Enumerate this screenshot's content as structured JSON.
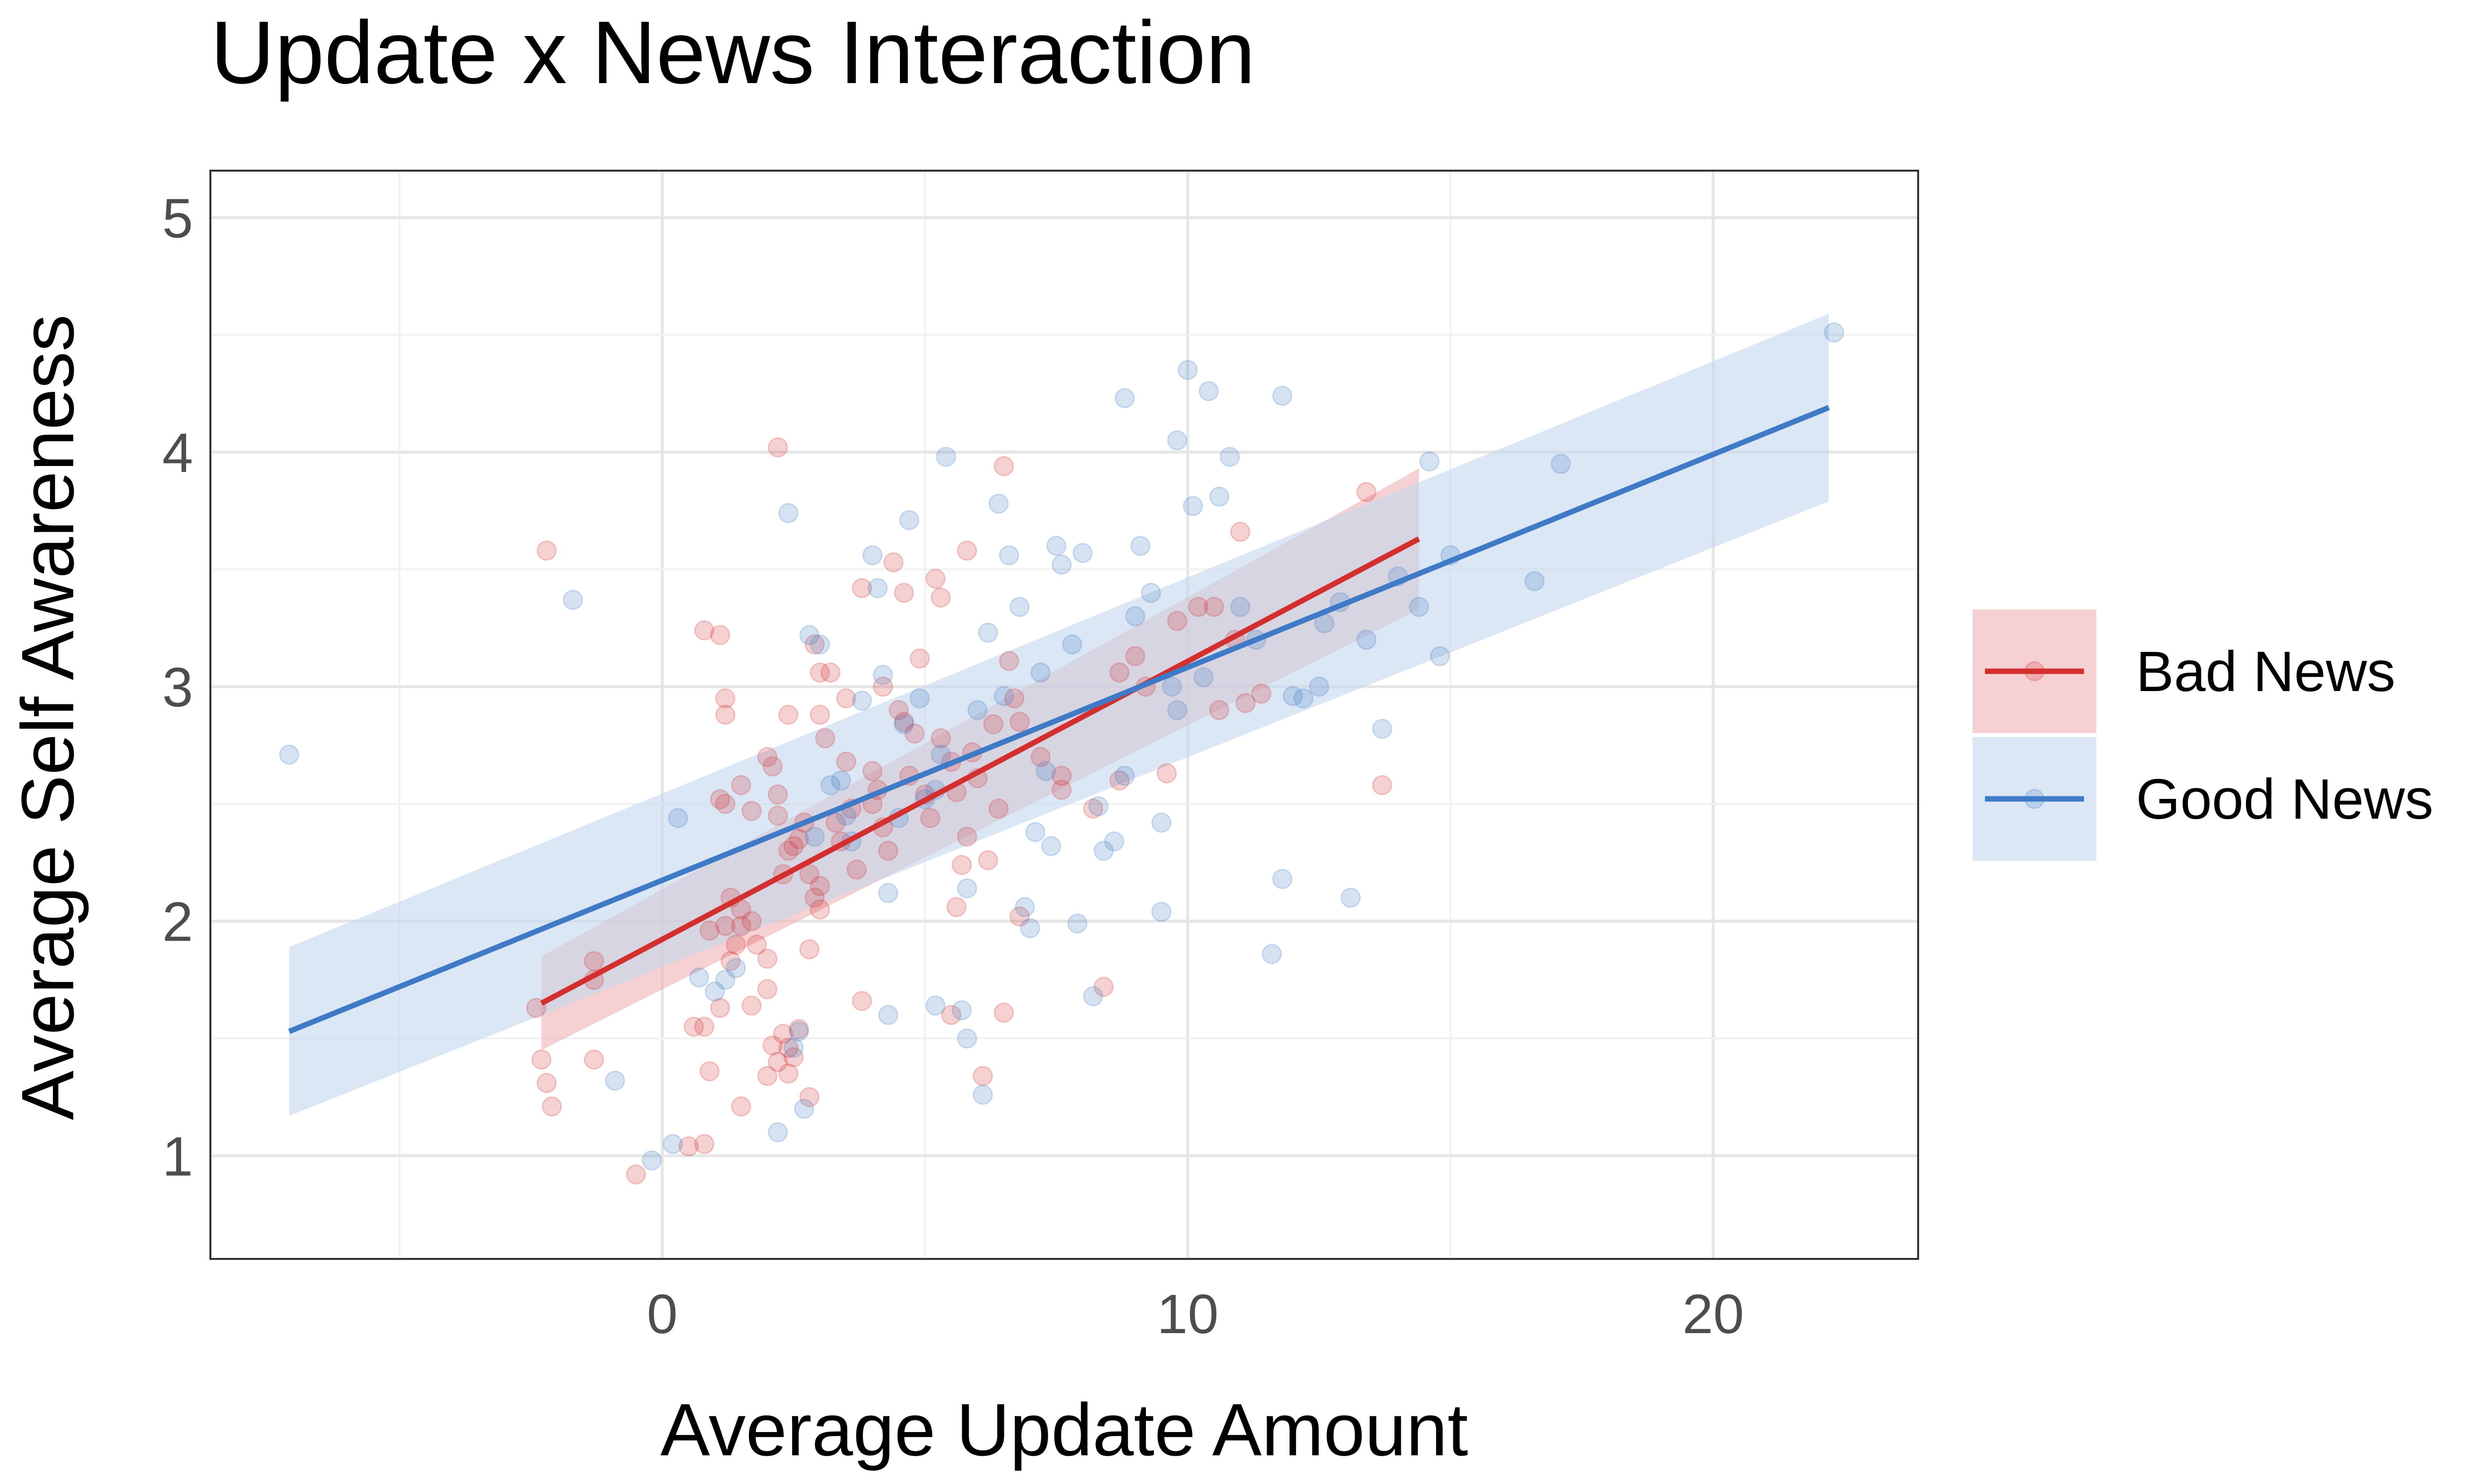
{
  "chart_data": {
    "type": "scatter",
    "title": "Update x News Interaction",
    "xlabel": "Average Update Amount",
    "ylabel": "Average Self Awareness",
    "xlim": [
      -8.6,
      23.9
    ],
    "ylim": [
      0.56,
      5.2
    ],
    "x_ticks": [
      0,
      10,
      20
    ],
    "y_ticks": [
      1,
      2,
      3,
      4,
      5
    ],
    "grid": true,
    "legend_position": "right",
    "series": [
      {
        "name": "Bad News",
        "color": "#d32f2f",
        "band_color": "#efb2b6",
        "fit": {
          "x": [
            -2.3,
            14.4
          ],
          "y": [
            1.65,
            3.63
          ]
        },
        "band": {
          "x": [
            -2.3,
            14.4
          ],
          "lower": [
            1.45,
            3.33
          ],
          "upper": [
            1.85,
            3.93
          ]
        },
        "points": [
          [
            -2.2,
            3.58
          ],
          [
            -2.4,
            1.63
          ],
          [
            -2.3,
            1.41
          ],
          [
            -2.2,
            1.31
          ],
          [
            -2.1,
            1.21
          ],
          [
            -1.3,
            1.41
          ],
          [
            -1.3,
            1.75
          ],
          [
            -1.3,
            1.83
          ],
          [
            -0.5,
            0.92
          ],
          [
            0.5,
            1.04
          ],
          [
            0.6,
            1.55
          ],
          [
            0.8,
            1.55
          ],
          [
            0.8,
            1.05
          ],
          [
            0.9,
            1.36
          ],
          [
            1.1,
            1.63
          ],
          [
            1.3,
            1.83
          ],
          [
            1.5,
            1.21
          ],
          [
            1.7,
            1.64
          ],
          [
            1.8,
            1.9
          ],
          [
            2.0,
            1.71
          ],
          [
            2.1,
            1.47
          ],
          [
            2.2,
            1.4
          ],
          [
            2.3,
            1.52
          ],
          [
            2.4,
            1.35
          ],
          [
            2.5,
            1.42
          ],
          [
            2.6,
            1.54
          ],
          [
            2.8,
            1.25
          ],
          [
            1.2,
            2.88
          ],
          [
            1.2,
            2.95
          ],
          [
            1.1,
            2.52
          ],
          [
            1.2,
            2.5
          ],
          [
            1.5,
            2.58
          ],
          [
            1.7,
            2.47
          ],
          [
            2.0,
            2.7
          ],
          [
            2.1,
            2.66
          ],
          [
            2.2,
            2.54
          ],
          [
            2.2,
            2.45
          ],
          [
            2.4,
            2.3
          ],
          [
            2.4,
            2.88
          ],
          [
            2.6,
            2.35
          ],
          [
            2.8,
            2.2
          ],
          [
            2.9,
            2.1
          ],
          [
            3.0,
            2.05
          ],
          [
            1.3,
            2.1
          ],
          [
            1.5,
            2.05
          ],
          [
            1.7,
            2.0
          ],
          [
            1.2,
            1.98
          ],
          [
            1.4,
            1.9
          ],
          [
            2.0,
            1.84
          ],
          [
            2.2,
            4.02
          ],
          [
            0.8,
            3.24
          ],
          [
            1.1,
            3.22
          ],
          [
            2.3,
            2.2
          ],
          [
            2.5,
            2.32
          ],
          [
            2.7,
            2.42
          ],
          [
            2.9,
            3.18
          ],
          [
            3.0,
            2.88
          ],
          [
            3.1,
            2.78
          ],
          [
            3.3,
            2.42
          ],
          [
            3.4,
            2.34
          ],
          [
            3.6,
            2.48
          ],
          [
            3.7,
            2.22
          ],
          [
            3.8,
            3.42
          ],
          [
            4.0,
            2.5
          ],
          [
            4.1,
            2.56
          ],
          [
            4.2,
            2.4
          ],
          [
            4.3,
            2.3
          ],
          [
            4.4,
            3.53
          ],
          [
            4.6,
            2.85
          ],
          [
            4.7,
            2.62
          ],
          [
            4.9,
            3.12
          ],
          [
            5.0,
            2.54
          ],
          [
            5.1,
            2.44
          ],
          [
            5.2,
            3.46
          ],
          [
            5.3,
            3.38
          ],
          [
            5.3,
            2.78
          ],
          [
            5.5,
            2.68
          ],
          [
            5.6,
            2.55
          ],
          [
            5.7,
            2.24
          ],
          [
            5.8,
            2.36
          ],
          [
            5.8,
            3.58
          ],
          [
            5.9,
            2.72
          ],
          [
            6.0,
            2.61
          ],
          [
            6.2,
            2.26
          ],
          [
            6.3,
            2.84
          ],
          [
            6.4,
            2.48
          ],
          [
            6.5,
            3.94
          ],
          [
            6.6,
            3.11
          ],
          [
            6.7,
            2.95
          ],
          [
            6.8,
            2.85
          ],
          [
            7.2,
            2.7
          ],
          [
            7.6,
            2.62
          ],
          [
            7.6,
            2.56
          ],
          [
            8.2,
            2.48
          ],
          [
            8.7,
            2.6
          ],
          [
            8.7,
            3.06
          ],
          [
            9.0,
            3.13
          ],
          [
            9.2,
            3.0
          ],
          [
            9.6,
            2.63
          ],
          [
            9.8,
            3.28
          ],
          [
            10.2,
            3.34
          ],
          [
            10.5,
            3.34
          ],
          [
            10.6,
            2.9
          ],
          [
            10.9,
            3.2
          ],
          [
            11.1,
            2.93
          ],
          [
            11.4,
            2.97
          ],
          [
            11.0,
            3.66
          ],
          [
            13.4,
            3.83
          ],
          [
            13.7,
            2.58
          ],
          [
            4.6,
            3.4
          ],
          [
            4.2,
            3.0
          ],
          [
            4.5,
            2.9
          ],
          [
            3.5,
            2.95
          ],
          [
            3.0,
            3.06
          ],
          [
            3.2,
            3.06
          ],
          [
            2.8,
            1.88
          ],
          [
            3.0,
            2.15
          ],
          [
            2.0,
            1.34
          ],
          [
            2.4,
            1.46
          ],
          [
            5.5,
            1.6
          ],
          [
            6.1,
            1.34
          ],
          [
            6.5,
            1.61
          ],
          [
            8.4,
            1.72
          ],
          [
            4.0,
            2.64
          ],
          [
            3.8,
            1.66
          ],
          [
            0.9,
            1.96
          ],
          [
            1.5,
            1.98
          ],
          [
            3.5,
            2.68
          ],
          [
            4.8,
            2.8
          ],
          [
            5.6,
            2.06
          ],
          [
            6.8,
            2.02
          ]
        ]
      },
      {
        "name": "Good News",
        "color": "#3f7ac6",
        "band_color": "#c5d7ef",
        "fit": {
          "x": [
            -7.1,
            22.2
          ],
          "y": [
            1.53,
            4.19
          ]
        },
        "band": {
          "x": [
            -7.1,
            22.2
          ],
          "lower": [
            1.17,
            3.79
          ],
          "upper": [
            1.89,
            4.59
          ]
        },
        "points": [
          [
            -7.1,
            2.71
          ],
          [
            -1.7,
            3.37
          ],
          [
            -0.9,
            1.32
          ],
          [
            -0.2,
            0.98
          ],
          [
            0.2,
            1.05
          ],
          [
            0.3,
            2.44
          ],
          [
            0.7,
            1.76
          ],
          [
            1.0,
            1.7
          ],
          [
            1.2,
            1.75
          ],
          [
            1.4,
            1.8
          ],
          [
            2.2,
            1.1
          ],
          [
            2.5,
            1.46
          ],
          [
            2.6,
            1.53
          ],
          [
            2.7,
            1.2
          ],
          [
            2.4,
            3.74
          ],
          [
            2.8,
            3.22
          ],
          [
            3.0,
            3.18
          ],
          [
            3.4,
            2.6
          ],
          [
            3.5,
            2.45
          ],
          [
            3.8,
            2.94
          ],
          [
            4.0,
            3.56
          ],
          [
            4.1,
            3.42
          ],
          [
            4.2,
            3.05
          ],
          [
            4.3,
            2.12
          ],
          [
            4.3,
            1.6
          ],
          [
            4.5,
            2.44
          ],
          [
            4.7,
            3.71
          ],
          [
            4.9,
            2.95
          ],
          [
            5.0,
            2.52
          ],
          [
            5.2,
            1.64
          ],
          [
            5.3,
            2.71
          ],
          [
            5.4,
            3.98
          ],
          [
            5.7,
            1.62
          ],
          [
            5.8,
            2.14
          ],
          [
            5.8,
            1.5
          ],
          [
            6.0,
            2.9
          ],
          [
            6.1,
            1.26
          ],
          [
            6.2,
            3.23
          ],
          [
            6.4,
            3.78
          ],
          [
            6.6,
            3.56
          ],
          [
            6.8,
            3.34
          ],
          [
            6.9,
            2.06
          ],
          [
            7.0,
            1.97
          ],
          [
            7.1,
            2.38
          ],
          [
            7.2,
            3.06
          ],
          [
            7.4,
            2.32
          ],
          [
            7.5,
            3.6
          ],
          [
            7.6,
            3.52
          ],
          [
            7.8,
            3.18
          ],
          [
            7.9,
            1.99
          ],
          [
            8.0,
            3.57
          ],
          [
            8.2,
            1.68
          ],
          [
            8.4,
            2.3
          ],
          [
            8.6,
            2.34
          ],
          [
            8.8,
            2.62
          ],
          [
            8.8,
            4.23
          ],
          [
            9.0,
            3.3
          ],
          [
            9.1,
            3.6
          ],
          [
            9.3,
            3.4
          ],
          [
            9.5,
            2.42
          ],
          [
            9.5,
            2.04
          ],
          [
            9.7,
            3.0
          ],
          [
            9.8,
            4.05
          ],
          [
            10.0,
            4.35
          ],
          [
            10.1,
            3.77
          ],
          [
            10.4,
            4.26
          ],
          [
            10.6,
            3.81
          ],
          [
            10.8,
            3.98
          ],
          [
            11.0,
            3.34
          ],
          [
            11.3,
            3.2
          ],
          [
            11.6,
            1.86
          ],
          [
            11.8,
            2.18
          ],
          [
            11.8,
            4.24
          ],
          [
            12.2,
            2.95
          ],
          [
            12.5,
            3.0
          ],
          [
            12.6,
            3.27
          ],
          [
            12.9,
            3.36
          ],
          [
            13.1,
            2.1
          ],
          [
            13.4,
            3.2
          ],
          [
            13.7,
            2.82
          ],
          [
            14.0,
            3.47
          ],
          [
            14.4,
            3.34
          ],
          [
            14.6,
            3.96
          ],
          [
            14.8,
            3.13
          ],
          [
            15.0,
            3.56
          ],
          [
            16.6,
            3.45
          ],
          [
            17.1,
            3.95
          ],
          [
            22.3,
            4.51
          ],
          [
            4.6,
            2.84
          ],
          [
            5.2,
            2.56
          ],
          [
            6.5,
            2.96
          ],
          [
            3.6,
            2.34
          ],
          [
            3.2,
            2.58
          ],
          [
            2.9,
            2.36
          ],
          [
            8.3,
            2.49
          ],
          [
            9.8,
            2.9
          ],
          [
            10.3,
            3.04
          ],
          [
            12.0,
            2.96
          ],
          [
            7.3,
            2.64
          ]
        ]
      }
    ]
  }
}
